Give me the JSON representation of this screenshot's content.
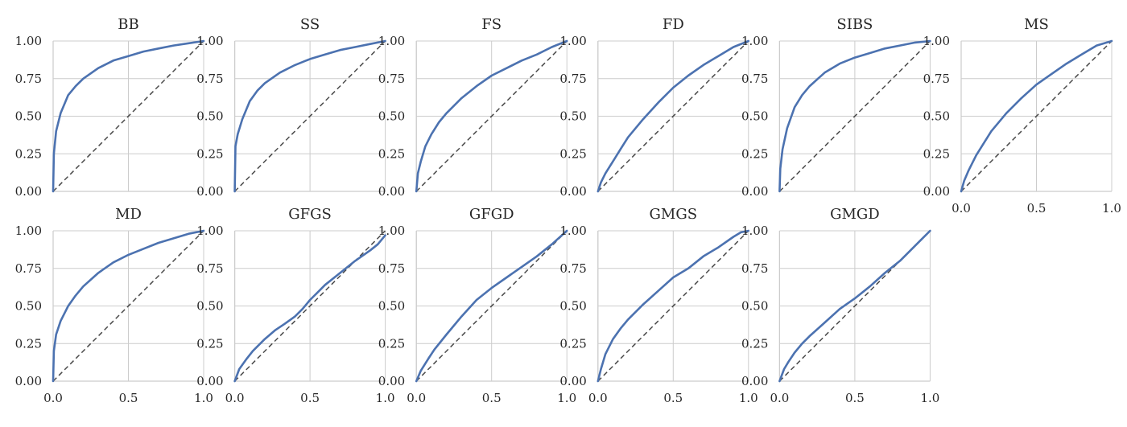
{
  "chart_data": {
    "type": "line",
    "layout": "small-multiples grid, 2 rows x 6 columns",
    "colors": {
      "curve": "#4c72b0",
      "diagonal": "#4a4a4a",
      "grid": "#cccccc"
    },
    "shared_axes": {
      "xlim": [
        0,
        1
      ],
      "ylim": [
        0,
        1
      ],
      "xticks": [
        "0.0",
        "0.5",
        "1.0"
      ],
      "yticks": [
        "0.00",
        "0.25",
        "0.50",
        "0.75",
        "1.00"
      ],
      "grid": true,
      "diagonal_reference": "y = x, dashed"
    },
    "panels": [
      {
        "title": "BB",
        "x": [
          0,
          0.005,
          0.02,
          0.05,
          0.1,
          0.15,
          0.2,
          0.3,
          0.4,
          0.5,
          0.6,
          0.7,
          0.8,
          0.9,
          1.0
        ],
        "y": [
          0,
          0.25,
          0.4,
          0.52,
          0.64,
          0.7,
          0.75,
          0.82,
          0.87,
          0.9,
          0.93,
          0.95,
          0.97,
          0.985,
          1.0
        ]
      },
      {
        "title": "SS",
        "x": [
          0,
          0.005,
          0.02,
          0.05,
          0.1,
          0.15,
          0.2,
          0.3,
          0.4,
          0.5,
          0.6,
          0.7,
          0.8,
          0.9,
          1.0
        ],
        "y": [
          0,
          0.3,
          0.38,
          0.48,
          0.6,
          0.67,
          0.72,
          0.79,
          0.84,
          0.88,
          0.91,
          0.94,
          0.96,
          0.98,
          1.0
        ]
      },
      {
        "title": "FS",
        "x": [
          0,
          0.01,
          0.03,
          0.06,
          0.1,
          0.15,
          0.2,
          0.3,
          0.4,
          0.5,
          0.6,
          0.7,
          0.8,
          0.9,
          1.0
        ],
        "y": [
          0,
          0.12,
          0.2,
          0.3,
          0.38,
          0.46,
          0.52,
          0.62,
          0.7,
          0.77,
          0.82,
          0.87,
          0.91,
          0.96,
          1.0
        ]
      },
      {
        "title": "FD",
        "x": [
          0,
          0.02,
          0.05,
          0.1,
          0.15,
          0.2,
          0.3,
          0.4,
          0.5,
          0.6,
          0.7,
          0.8,
          0.9,
          1.0
        ],
        "y": [
          0,
          0.06,
          0.12,
          0.2,
          0.28,
          0.36,
          0.48,
          0.59,
          0.69,
          0.77,
          0.84,
          0.9,
          0.96,
          1.0
        ]
      },
      {
        "title": "SIBS",
        "x": [
          0,
          0.005,
          0.02,
          0.05,
          0.1,
          0.15,
          0.2,
          0.3,
          0.4,
          0.5,
          0.6,
          0.7,
          0.8,
          0.9,
          1.0
        ],
        "y": [
          0,
          0.15,
          0.28,
          0.42,
          0.56,
          0.64,
          0.7,
          0.79,
          0.85,
          0.89,
          0.92,
          0.95,
          0.97,
          0.99,
          1.0
        ]
      },
      {
        "title": "MS",
        "x": [
          0,
          0.02,
          0.05,
          0.1,
          0.15,
          0.2,
          0.3,
          0.4,
          0.5,
          0.6,
          0.7,
          0.8,
          0.9,
          1.0
        ],
        "y": [
          0,
          0.07,
          0.14,
          0.24,
          0.32,
          0.4,
          0.52,
          0.62,
          0.71,
          0.78,
          0.85,
          0.91,
          0.97,
          1.0
        ]
      },
      {
        "title": "MD",
        "x": [
          0,
          0.005,
          0.02,
          0.05,
          0.1,
          0.15,
          0.2,
          0.3,
          0.4,
          0.5,
          0.6,
          0.7,
          0.8,
          0.9,
          1.0
        ],
        "y": [
          0,
          0.2,
          0.31,
          0.4,
          0.5,
          0.57,
          0.63,
          0.72,
          0.79,
          0.84,
          0.88,
          0.92,
          0.95,
          0.98,
          1.0
        ]
      },
      {
        "title": "GFGS",
        "x": [
          0,
          0.03,
          0.08,
          0.12,
          0.2,
          0.27,
          0.33,
          0.4,
          0.45,
          0.5,
          0.55,
          0.6,
          0.7,
          0.8,
          0.9,
          0.95,
          1.0
        ],
        "y": [
          0,
          0.08,
          0.15,
          0.2,
          0.28,
          0.34,
          0.38,
          0.43,
          0.48,
          0.54,
          0.59,
          0.64,
          0.72,
          0.8,
          0.87,
          0.91,
          0.97
        ]
      },
      {
        "title": "GFGD",
        "x": [
          0,
          0.03,
          0.08,
          0.12,
          0.2,
          0.3,
          0.4,
          0.5,
          0.6,
          0.7,
          0.8,
          0.9,
          1.0
        ],
        "y": [
          0,
          0.07,
          0.15,
          0.21,
          0.31,
          0.43,
          0.54,
          0.62,
          0.69,
          0.76,
          0.83,
          0.91,
          1.0
        ]
      },
      {
        "title": "GMGS",
        "x": [
          0,
          0.02,
          0.05,
          0.1,
          0.15,
          0.2,
          0.3,
          0.4,
          0.5,
          0.6,
          0.7,
          0.8,
          0.9,
          0.95,
          1.0
        ],
        "y": [
          0,
          0.08,
          0.18,
          0.28,
          0.35,
          0.41,
          0.51,
          0.6,
          0.69,
          0.75,
          0.83,
          0.89,
          0.96,
          0.99,
          1.0
        ]
      },
      {
        "title": "GMGD",
        "x": [
          0,
          0.03,
          0.06,
          0.1,
          0.15,
          0.2,
          0.3,
          0.4,
          0.5,
          0.6,
          0.7,
          0.8,
          0.9,
          1.0
        ],
        "y": [
          0,
          0.08,
          0.13,
          0.19,
          0.25,
          0.3,
          0.39,
          0.48,
          0.55,
          0.63,
          0.72,
          0.8,
          0.9,
          1.0
        ]
      }
    ]
  }
}
